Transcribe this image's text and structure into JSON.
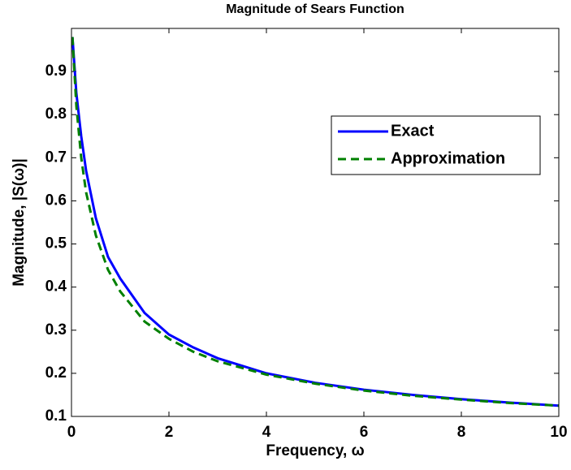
{
  "chart_data": {
    "type": "line",
    "title": "Magnitude of Sears Function",
    "xlabel": "Frequency, ω",
    "ylabel": "Magnitude, |S(ω)|",
    "x": [
      0.02,
      0.1,
      0.2,
      0.3,
      0.5,
      0.75,
      1,
      1.5,
      2,
      2.5,
      3,
      4,
      5,
      6,
      7,
      8,
      9,
      10
    ],
    "series": [
      {
        "name": "Exact",
        "color": "#0000ff",
        "line_style": "solid",
        "values": [
          0.98,
          0.85,
          0.75,
          0.67,
          0.56,
          0.47,
          0.42,
          0.34,
          0.29,
          0.26,
          0.235,
          0.2,
          0.178,
          0.162,
          0.15,
          0.14,
          0.132,
          0.125
        ]
      },
      {
        "name": "Approximation",
        "color": "#008000",
        "line_style": "dashed",
        "values": [
          0.98,
          0.82,
          0.7,
          0.62,
          0.52,
          0.44,
          0.39,
          0.32,
          0.28,
          0.25,
          0.228,
          0.197,
          0.176,
          0.16,
          0.148,
          0.139,
          0.131,
          0.125
        ]
      }
    ],
    "xlim": [
      0,
      10
    ],
    "xticks": [
      0,
      2,
      4,
      6,
      8,
      10
    ],
    "ylim": [
      0.1,
      1.0
    ],
    "yticks": [
      0.1,
      0.2,
      0.3,
      0.4,
      0.5,
      0.6,
      0.7,
      0.8,
      0.9
    ],
    "grid": false,
    "legend": "northeast"
  }
}
